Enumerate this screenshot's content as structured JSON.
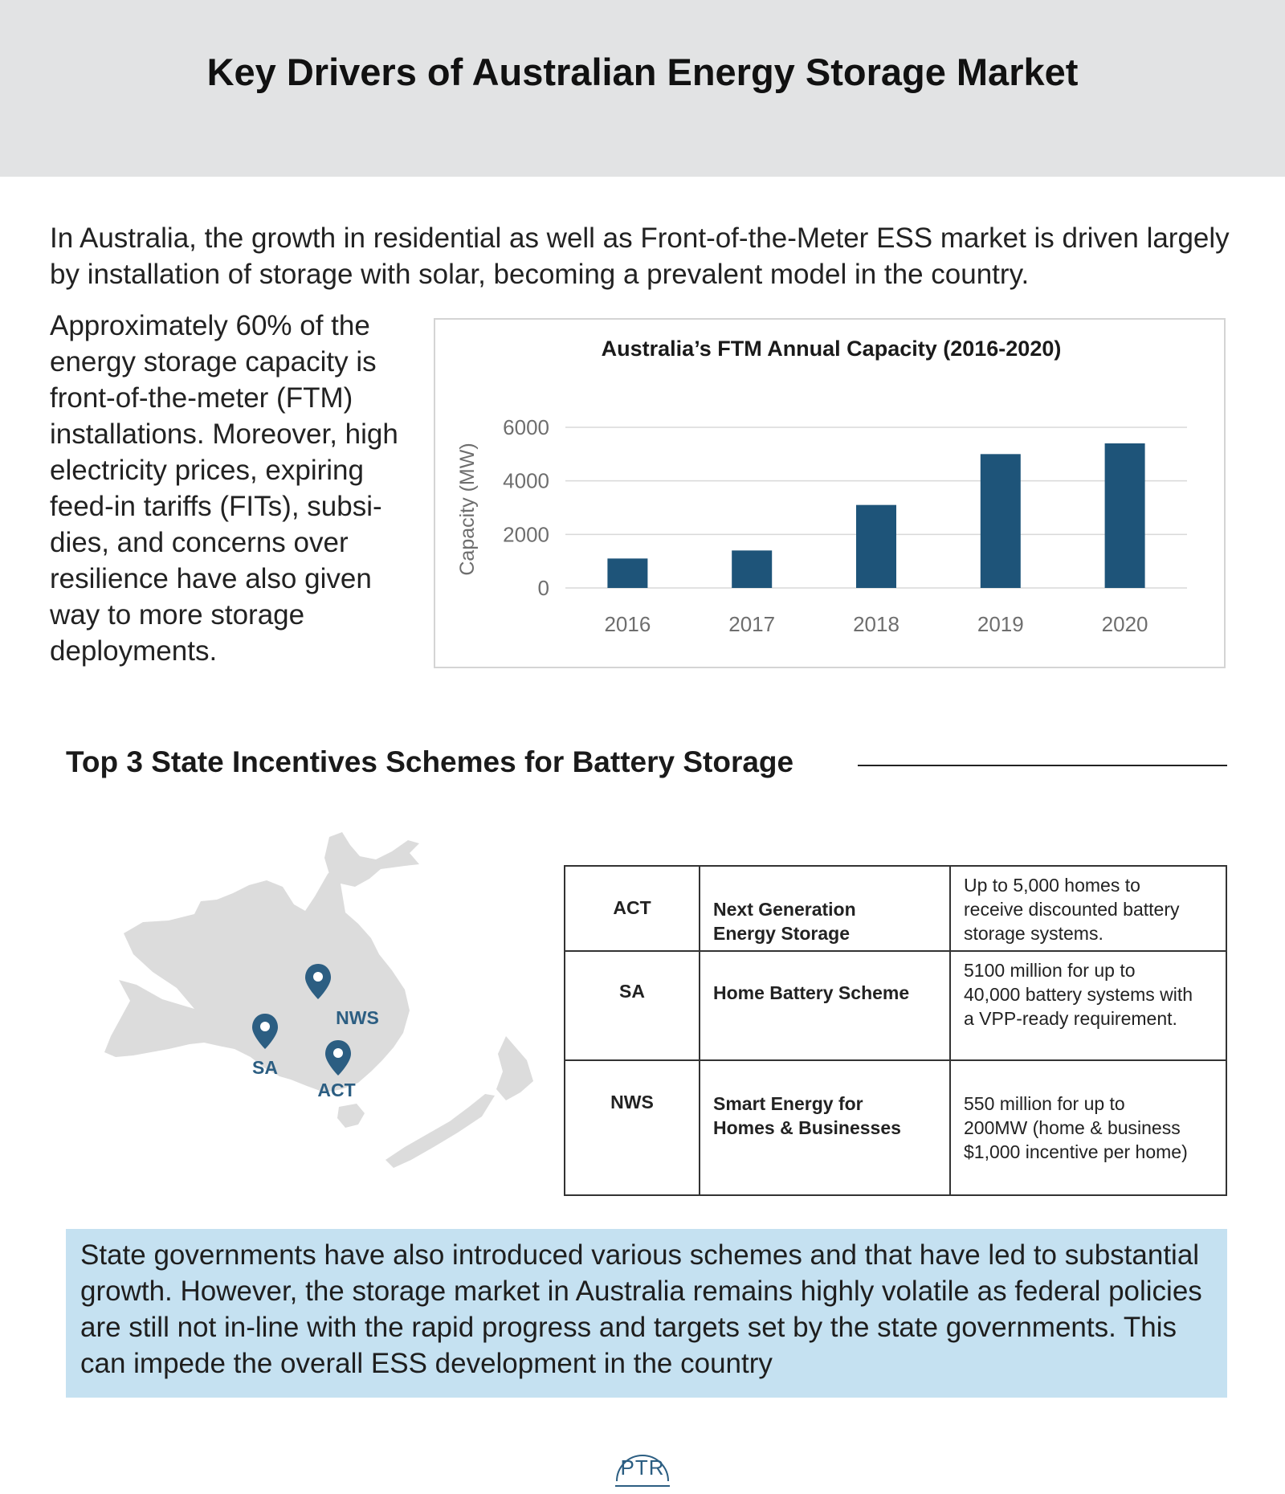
{
  "header": {
    "title": "Key Drivers of Australian Energy Storage Market"
  },
  "intro": "In Australia, the growth in residential as well as Front-of-the-Meter ESS market is driven largely by installation of storage with solar, becoming a prevalent model in the country.",
  "side_text": "Approximately 60% of the energy storage capacity is front-of-the-meter (FTM) installations. Moreover, high electricity prices, expiring feed-in tariffs (FITs), subsi-dies, and concerns over resilience have also given way to more storage deployments.",
  "chart_data": {
    "type": "bar",
    "title": "Australia’s FTM Annual Capacity (2016-2020)",
    "xlabel": "",
    "ylabel": "Capacity (MW)",
    "categories": [
      "2016",
      "2017",
      "2018",
      "2019",
      "2020"
    ],
    "values": [
      1100,
      1400,
      3100,
      5000,
      5400
    ],
    "ylim": [
      0,
      6000
    ],
    "yticks": [
      0,
      2000,
      4000,
      6000
    ],
    "grid": true,
    "legend": "none",
    "colors": {
      "bar": "#1e5479",
      "grid": "#d9d9d9",
      "axis_text": "#6e6e6e"
    }
  },
  "incentives": {
    "title": "Top 3 State Incentives Schemes for Battery Storage",
    "map_labels": {
      "nws": "NWS",
      "sa": "SA",
      "act": "ACT"
    },
    "rows": [
      {
        "state": "ACT",
        "scheme": [
          "Next Generation",
          "Energy Storage"
        ],
        "detail": [
          "Up to 5,000 homes to",
          "receive discounted battery",
          "storage systems."
        ]
      },
      {
        "state": "SA",
        "scheme": [
          "Home Battery Scheme"
        ],
        "detail": [
          "5100 million for up to",
          "40,000 battery systems with",
          "a VPP-ready requirement."
        ]
      },
      {
        "state": "NWS",
        "scheme": [
          "Smart Energy for",
          "Homes & Businesses"
        ],
        "detail": [
          "550 million for up to",
          "200MW (home & business",
          "$1,000 incentive per home)"
        ]
      }
    ]
  },
  "summary": "State governments have also introduced various schemes and that have led to substantial growth. However, the storage market in Australia remains highly volatile as federal policies are still not in-line with the rapid progress and targets set by the state governments. This can impede the overall ESS development in the country",
  "footer": {
    "logo_text": "PTR"
  },
  "colors": {
    "header_bg": "#e2e3e4",
    "accent": "#2c5e82",
    "summary_bg": "#c5e1f1",
    "map_fill": "#dcdcdc"
  }
}
